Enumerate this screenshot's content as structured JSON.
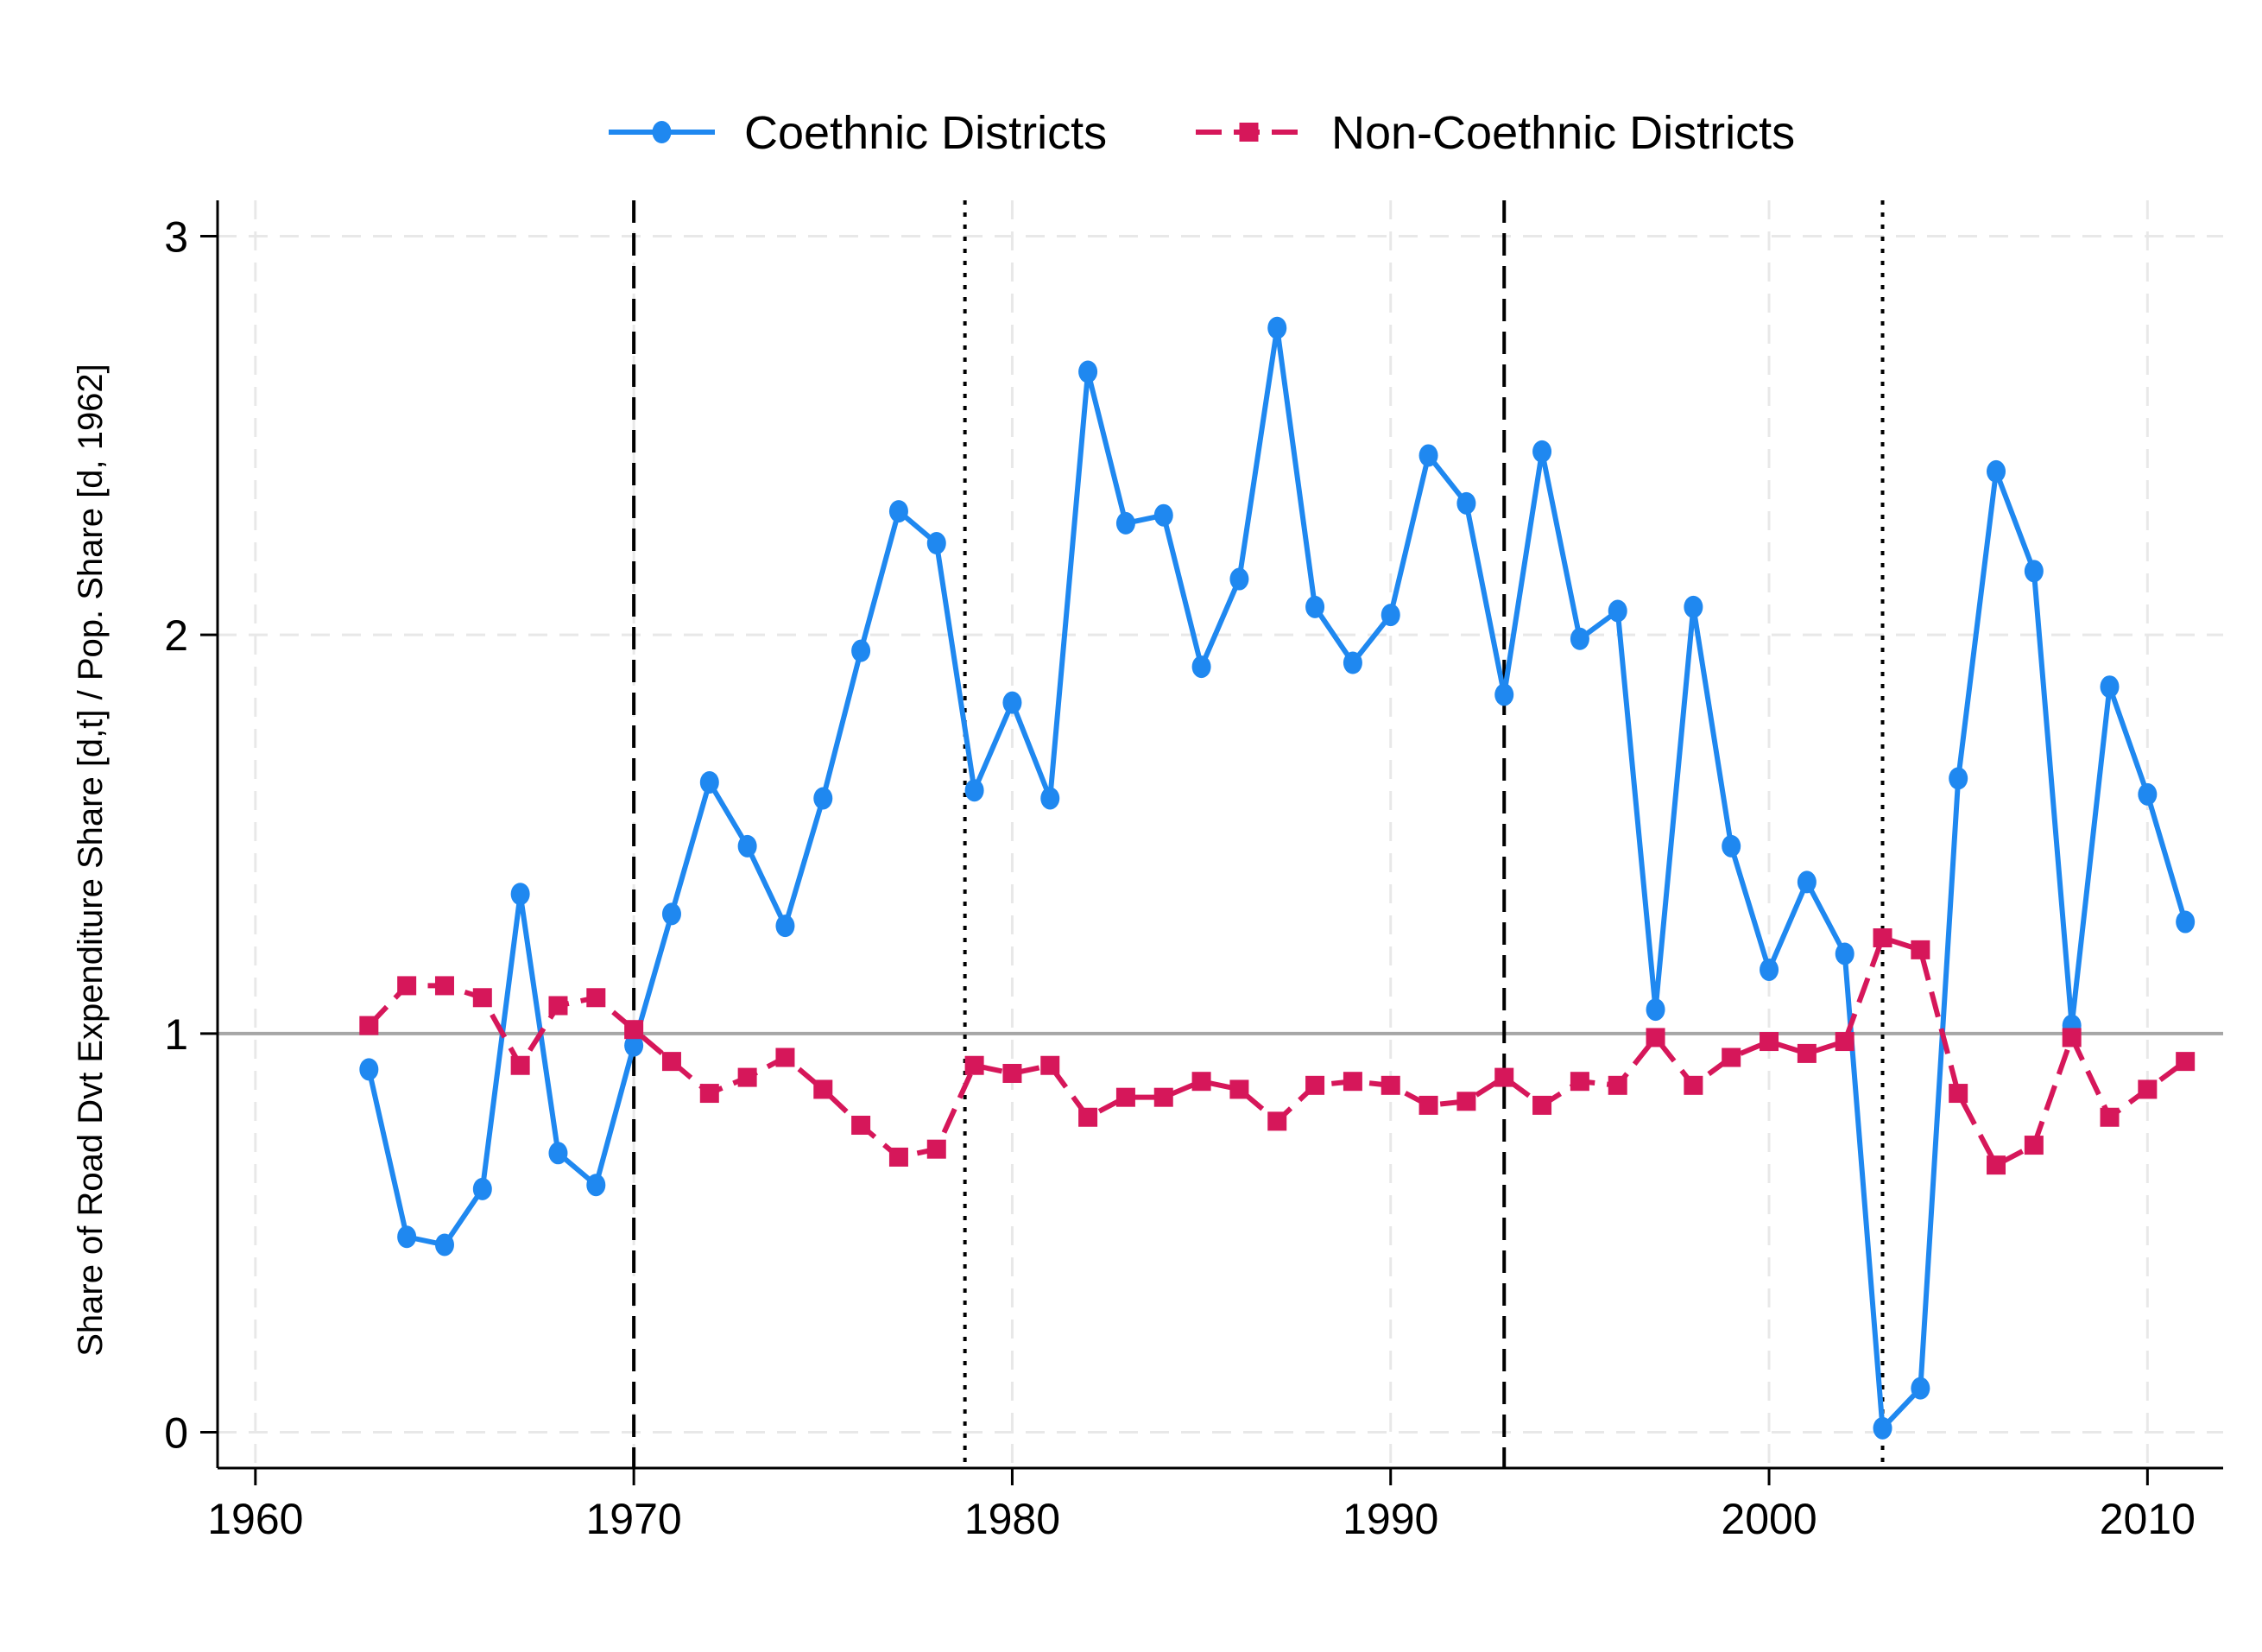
{
  "chart_data": {
    "type": "line",
    "title": "",
    "xlabel": "",
    "ylabel": "Share of Road Dvt Expenditure Share [d,t] / Pop. Share [d, 1962]",
    "xlim": [
      1959,
      2012
    ],
    "ylim": [
      -0.09,
      3.09
    ],
    "x_ticks": [
      1960,
      1970,
      1980,
      1990,
      2000,
      2010
    ],
    "y_ticks": [
      0,
      1,
      2,
      3
    ],
    "x_tick_labels": [
      "1960",
      "1970",
      "1980",
      "1990",
      "2000",
      "2010"
    ],
    "y_tick_labels": [
      "0",
      "1",
      "2",
      "3"
    ],
    "grid": true,
    "legend_position": "top-center",
    "reference_line": {
      "y": 1,
      "color": "#a6a6a6"
    },
    "vertical_lines": [
      {
        "x": 1970,
        "style": "dashed"
      },
      {
        "x": 1978.75,
        "style": "dotted"
      },
      {
        "x": 1993,
        "style": "dashed"
      },
      {
        "x": 2003,
        "style": "dotted"
      }
    ],
    "series": [
      {
        "name": "Coethnic Districts",
        "color": "#1f88f0",
        "line_style": "solid",
        "marker": "circle",
        "x": [
          1963,
          1964,
          1965,
          1966,
          1967,
          1968,
          1969,
          1970,
          1971,
          1972,
          1973,
          1974,
          1975,
          1976,
          1977,
          1978,
          1979,
          1980,
          1981,
          1982,
          1983,
          1984,
          1985,
          1986,
          1987,
          1988,
          1989,
          1990,
          1991,
          1992,
          1993,
          1994,
          1995,
          1996,
          1997,
          1998,
          1999,
          2000,
          2001,
          2002,
          2003,
          2004,
          2005,
          2006,
          2007,
          2008,
          2009,
          2010,
          2011
        ],
        "values": [
          0.91,
          0.49,
          0.47,
          0.61,
          1.35,
          0.7,
          0.62,
          0.97,
          1.3,
          1.63,
          1.47,
          1.27,
          1.59,
          1.96,
          2.31,
          2.23,
          1.61,
          1.83,
          1.59,
          2.66,
          2.28,
          2.3,
          1.92,
          2.14,
          2.77,
          2.07,
          1.93,
          2.05,
          2.45,
          2.33,
          1.85,
          2.46,
          1.99,
          2.06,
          1.06,
          2.07,
          1.47,
          1.16,
          1.38,
          1.2,
          0.01,
          0.11,
          1.64,
          2.41,
          2.16,
          1.02,
          1.87,
          1.6,
          1.28
        ]
      },
      {
        "name": "Non-Coethnic Districts",
        "color": "#d6175a",
        "line_style": "dashed",
        "marker": "square",
        "x": [
          1963,
          1964,
          1965,
          1966,
          1967,
          1968,
          1969,
          1970,
          1971,
          1972,
          1973,
          1974,
          1975,
          1976,
          1977,
          1978,
          1979,
          1980,
          1981,
          1982,
          1983,
          1984,
          1985,
          1986,
          1987,
          1988,
          1989,
          1990,
          1991,
          1992,
          1993,
          1994,
          1995,
          1996,
          1997,
          1998,
          1999,
          2000,
          2001,
          2002,
          2003,
          2004,
          2005,
          2006,
          2007,
          2008,
          2009,
          2010,
          2011
        ],
        "values": [
          1.02,
          1.12,
          1.12,
          1.09,
          0.92,
          1.07,
          1.09,
          1.01,
          0.93,
          0.85,
          0.89,
          0.94,
          0.86,
          0.77,
          0.69,
          0.71,
          0.92,
          0.9,
          0.92,
          0.79,
          0.84,
          0.84,
          0.88,
          0.86,
          0.78,
          0.87,
          0.88,
          0.87,
          0.82,
          0.83,
          0.89,
          0.82,
          0.88,
          0.87,
          0.99,
          0.87,
          0.94,
          0.98,
          0.95,
          0.98,
          1.24,
          1.21,
          0.85,
          0.67,
          0.72,
          0.99,
          0.79,
          0.86,
          0.93
        ]
      }
    ]
  }
}
